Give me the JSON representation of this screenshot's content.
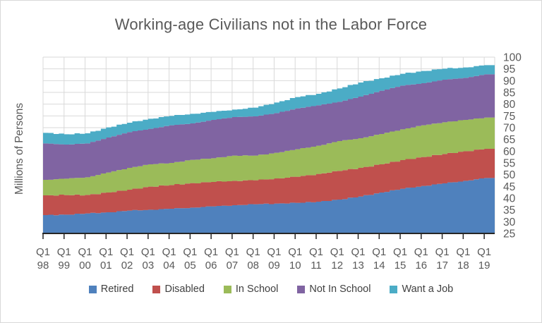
{
  "chart_data": {
    "type": "area",
    "stacked": true,
    "title": "Working-age Civilians not in the Labor Force",
    "ylabel": "Millions of Persons",
    "xlabel": "",
    "ylim": [
      25,
      100
    ],
    "y_ticks": [
      100,
      95,
      90,
      85,
      80,
      75,
      70,
      65,
      60,
      55,
      50,
      45,
      40,
      35,
      30,
      25
    ],
    "grid": true,
    "legend_position": "bottom",
    "x_quarter_label": "Q1",
    "x_labels": [
      "98",
      "99",
      "00",
      "01",
      "02",
      "03",
      "04",
      "05",
      "06",
      "07",
      "08",
      "09",
      "10",
      "11",
      "12",
      "13",
      "14",
      "15",
      "16",
      "17",
      "18",
      "19"
    ],
    "x_note": "annual Q1 values in millions of persons; chart drawn with quarterly steps",
    "series": [
      {
        "name": "Retired",
        "color": "#4F81BD",
        "values": [
          32.8,
          33.0,
          33.5,
          34.0,
          34.7,
          35.1,
          35.5,
          36.0,
          36.5,
          37.0,
          37.4,
          37.7,
          38.0,
          38.5,
          39.4,
          40.7,
          42.4,
          44.0,
          45.2,
          46.3,
          47.4,
          48.6
        ]
      },
      {
        "name": "Disabled",
        "color": "#C0504D",
        "values": [
          8.4,
          8.3,
          7.9,
          8.4,
          8.9,
          9.8,
          10.1,
          10.4,
          10.4,
          10.4,
          10.2,
          10.7,
          11.1,
          11.8,
          12.2,
          12.2,
          12.0,
          12.2,
          12.3,
          12.5,
          12.6,
          12.4
        ]
      },
      {
        "name": "In School",
        "color": "#9BBB59",
        "values": [
          6.6,
          7.0,
          7.5,
          8.5,
          9.3,
          9.5,
          9.4,
          9.9,
          10.1,
          10.7,
          10.5,
          10.9,
          11.7,
          12.0,
          12.7,
          12.6,
          12.9,
          13.1,
          13.5,
          13.5,
          13.3,
          13.3
        ]
      },
      {
        "name": "Not In School",
        "color": "#8064A2",
        "values": [
          15.5,
          14.5,
          14.4,
          14.9,
          15.2,
          15.1,
          16.0,
          15.5,
          16.3,
          16.4,
          16.7,
          16.9,
          17.4,
          17.2,
          16.7,
          17.7,
          18.4,
          18.6,
          17.9,
          18.1,
          17.9,
          18.4
        ]
      },
      {
        "name": "Want a Job",
        "color": "#4BACC6",
        "values": [
          4.5,
          4.4,
          4.3,
          4.3,
          4.0,
          4.3,
          4.0,
          4.1,
          3.4,
          3.2,
          3.7,
          4.5,
          4.8,
          4.9,
          5.7,
          6.0,
          5.3,
          5.0,
          5.2,
          4.7,
          4.4,
          3.9
        ]
      }
    ],
    "style_colors": {
      "grid": "#d9d9d9",
      "axis_line": "#262626",
      "tick_text": "#595959",
      "title_text": "#595959",
      "legend_text": "#404040",
      "frame_border": "#d9d9d9"
    }
  }
}
